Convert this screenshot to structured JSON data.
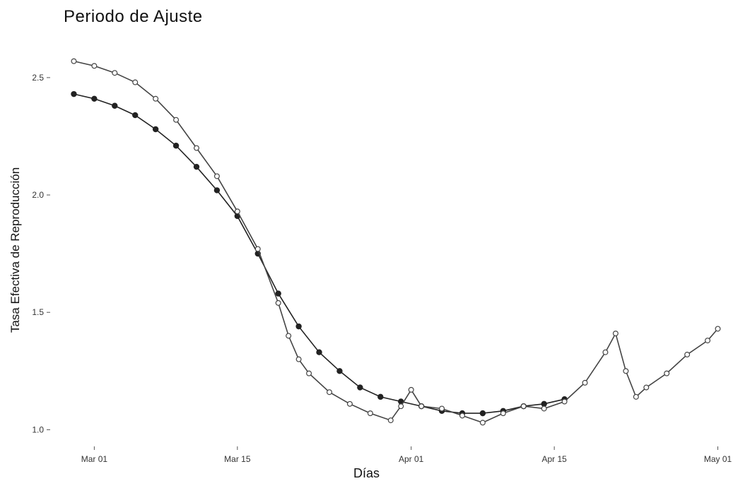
{
  "chart_data": {
    "type": "line",
    "title": "Periodo de Ajuste",
    "xlabel": "Días",
    "ylabel": "Tasa Efectiva de Reproducción",
    "x_tick_labels": [
      "Mar 01",
      "Mar 15",
      "Apr 01",
      "Apr 15",
      "May 01"
    ],
    "y_tick_labels": [
      "1.0",
      "1.5",
      "2.0",
      "2.5"
    ],
    "xlim": [
      "2020-02-27",
      "2020-05-02"
    ],
    "ylim": [
      0.95,
      2.62
    ],
    "grid": false,
    "legend": "none",
    "series": [
      {
        "marker": "filled-circle",
        "color": "#222222",
        "x": [
          "2020-02-28",
          "2020-03-01",
          "2020-03-03",
          "2020-03-05",
          "2020-03-07",
          "2020-03-09",
          "2020-03-11",
          "2020-03-13",
          "2020-03-15",
          "2020-03-17",
          "2020-03-19",
          "2020-03-21",
          "2020-03-23",
          "2020-03-25",
          "2020-03-27",
          "2020-03-29",
          "2020-03-31",
          "2020-04-02",
          "2020-04-04",
          "2020-04-06",
          "2020-04-08",
          "2020-04-10",
          "2020-04-12",
          "2020-04-14",
          "2020-04-16"
        ],
        "y": [
          2.43,
          2.41,
          2.38,
          2.34,
          2.28,
          2.21,
          2.12,
          2.02,
          1.91,
          1.75,
          1.58,
          1.44,
          1.33,
          1.25,
          1.18,
          1.14,
          1.12,
          1.1,
          1.08,
          1.07,
          1.07,
          1.08,
          1.1,
          1.11,
          1.13
        ]
      },
      {
        "marker": "open-circle",
        "color": "#444444",
        "x": [
          "2020-02-28",
          "2020-03-01",
          "2020-03-03",
          "2020-03-05",
          "2020-03-07",
          "2020-03-09",
          "2020-03-11",
          "2020-03-13",
          "2020-03-15",
          "2020-03-17",
          "2020-03-19",
          "2020-03-20",
          "2020-03-21",
          "2020-03-22",
          "2020-03-24",
          "2020-03-26",
          "2020-03-28",
          "2020-03-30",
          "2020-03-31",
          "2020-04-01",
          "2020-04-02",
          "2020-04-04",
          "2020-04-06",
          "2020-04-08",
          "2020-04-10",
          "2020-04-12",
          "2020-04-14",
          "2020-04-16",
          "2020-04-18",
          "2020-04-20",
          "2020-04-21",
          "2020-04-22",
          "2020-04-23",
          "2020-04-24",
          "2020-04-26",
          "2020-04-28",
          "2020-04-30",
          "2020-05-01"
        ],
        "y": [
          2.57,
          2.55,
          2.52,
          2.48,
          2.41,
          2.32,
          2.2,
          2.08,
          1.93,
          1.77,
          1.54,
          1.4,
          1.3,
          1.24,
          1.16,
          1.11,
          1.07,
          1.04,
          1.1,
          1.17,
          1.1,
          1.09,
          1.06,
          1.03,
          1.07,
          1.1,
          1.09,
          1.12,
          1.2,
          1.33,
          1.41,
          1.25,
          1.14,
          1.18,
          1.24,
          1.32,
          1.38,
          1.43
        ]
      }
    ]
  }
}
